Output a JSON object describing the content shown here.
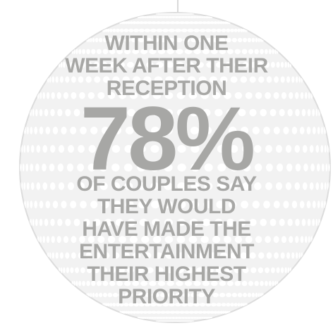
{
  "colors": {
    "text": "#a7a7a5",
    "ball_outline": "#d9d9d9",
    "ball_fill": "#f2f2f2",
    "dots": "#ffffff"
  },
  "icons": [
    "disco-ball-icon"
  ],
  "headline": {
    "line1": "WITHIN ONE",
    "line2": "WEEK AFTER THEIR",
    "line3": "RECEPTION"
  },
  "stat": {
    "value": "78%"
  },
  "body": {
    "line1": "OF COUPLES SAY",
    "line2": "THEY WOULD",
    "line3": "HAVE MADE THE",
    "line4": "ENTERTAINMENT",
    "line5": "THEIR HIGHEST",
    "line6": "PRIORITY"
  }
}
